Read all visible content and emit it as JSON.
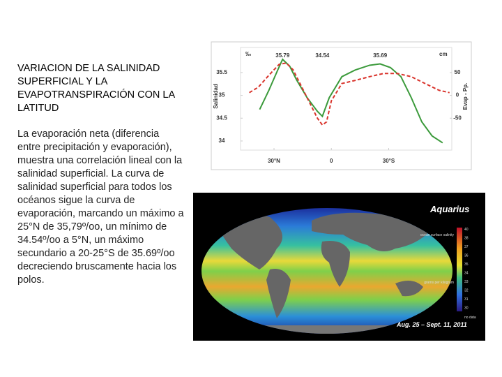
{
  "title": "VARIACION DE LA SALINIDAD SUPERFICIAL Y LA EVAPOTRANSPIRACIÓN CON LA LATITUD",
  "body": "La evaporación neta (diferencia entre precipitación y evaporación), muestra una correlación lineal con la salinidad superficial. La curva de salinidad superficial para todos los océanos sigue la curva de evaporación, marcando un máximo a 25°N de 35,79º/oo, un mínimo de 34.54º/oo a 5°N, un máximo secundario a 20-25°S de 35.69º/oo decreciendo bruscamente hacia los polos.",
  "chart_data": {
    "type": "line",
    "y_label": "Salinidad",
    "y2_label": "Evap - Pp.",
    "y_unit": "‰",
    "y2_unit": "cm",
    "annotations": [
      "35.79",
      "35.69",
      "34.54"
    ],
    "xlim": [
      47.5,
      -63
    ],
    "xticks": [
      {
        "value": 30,
        "label": "30°N"
      },
      0,
      {
        "value": -30,
        "label": "30°S"
      }
    ],
    "ylim": [
      33.8,
      36.05
    ],
    "yticks": [
      34,
      34.5,
      35,
      35.5
    ],
    "y2lim": [
      -120,
      105
    ],
    "y2ticks": [
      50,
      0,
      -50
    ],
    "series": [
      {
        "color": "#3b9a3b",
        "x": [
          37.5,
          32.7,
          28,
          25.5,
          21.8,
          18.2,
          12.7,
          7.3,
          4.7,
          1.1,
          -5.5,
          -12.7,
          -20,
          -25.5,
          -30.9,
          -36.4,
          -41.8,
          -47.3,
          -52.7,
          -58.2
        ],
        "values": [
          34.69,
          35.11,
          35.56,
          35.79,
          35.64,
          35.34,
          34.95,
          34.65,
          34.54,
          34.95,
          35.41,
          35.56,
          35.66,
          35.69,
          35.61,
          35.41,
          34.95,
          34.42,
          34.11,
          33.96
        ]
      },
      {
        "color": "#d9332b",
        "axis": "y2",
        "dashed": true,
        "x": [
          42.9,
          38.2,
          32.7,
          27.3,
          23.6,
          20,
          16.4,
          10.9,
          7.3,
          4.7,
          2.5,
          0,
          -5.5,
          -12.7,
          -20,
          -27.3,
          -34.5,
          -41.8,
          -49,
          -56.4,
          -61.8
        ],
        "values": [
          6,
          18,
          44,
          68,
          71,
          56,
          26,
          -20,
          -50,
          -65,
          -58,
          -12,
          26,
          33,
          41,
          48,
          48,
          41,
          26,
          11,
          6
        ]
      }
    ]
  },
  "map": {
    "title": "Aquarius",
    "date": "Aug. 25 – Sept. 11, 2011",
    "legend_title": "ocean surface salinity",
    "legend_unit": "grams per kilogram",
    "legend_ticks": [
      "40",
      "38",
      "37",
      "36",
      "35",
      "34",
      "33",
      "32",
      "31",
      "30"
    ],
    "no_data": "no data"
  }
}
